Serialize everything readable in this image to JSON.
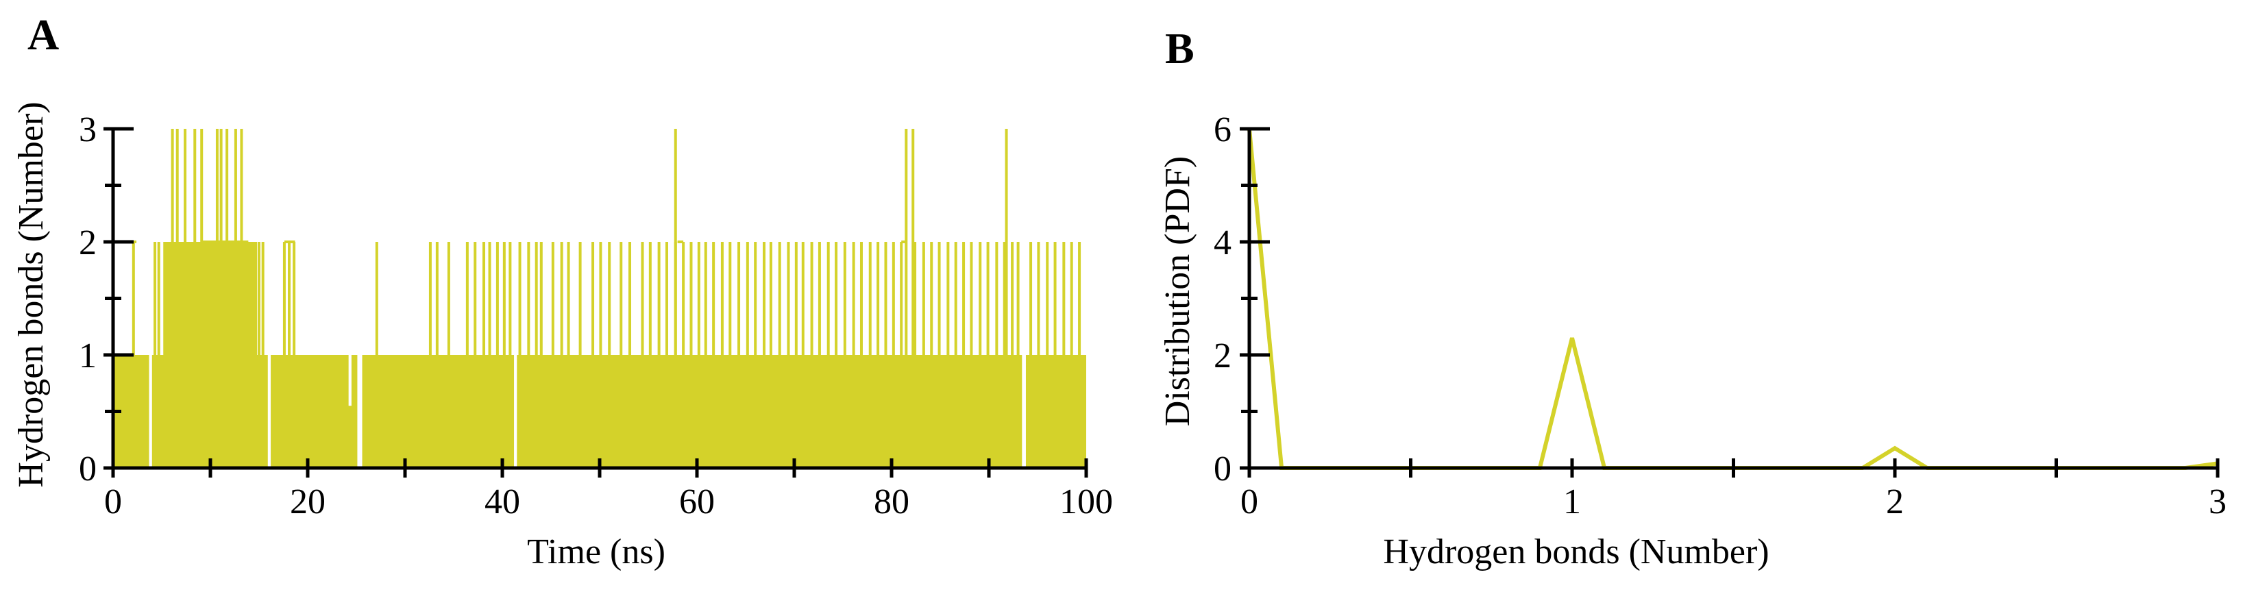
{
  "colors": {
    "series": "#d4d22a",
    "axis": "#000000",
    "background": "#ffffff"
  },
  "chart_data": [
    {
      "panel": "A",
      "type": "area",
      "title": "",
      "xlabel": "Time (ns)",
      "ylabel": "Hydrogen bonds (Number)",
      "xlim": [
        0,
        100
      ],
      "ylim": [
        0,
        3
      ],
      "xticks": [
        0,
        20,
        40,
        60,
        80,
        100
      ],
      "yticks": [
        0,
        1,
        2,
        3
      ],
      "series": [
        {
          "name": "Hydrogen bonds",
          "baseline": [
            [
              0,
              1
            ],
            [
              3.7,
              1
            ],
            [
              3.7,
              0
            ],
            [
              4.0,
              0
            ],
            [
              4.0,
              1
            ],
            [
              15.9,
              1
            ],
            [
              15.9,
              0
            ],
            [
              16.2,
              0
            ],
            [
              16.2,
              1
            ],
            [
              24.2,
              1
            ],
            [
              24.2,
              0.55
            ],
            [
              24.5,
              0.55
            ],
            [
              24.5,
              1
            ],
            [
              25.1,
              1
            ],
            [
              25.1,
              0
            ],
            [
              25.6,
              0
            ],
            [
              25.6,
              1
            ],
            [
              41.2,
              1
            ],
            [
              41.2,
              0
            ],
            [
              41.5,
              0
            ],
            [
              41.5,
              1
            ],
            [
              93.4,
              1
            ],
            [
              93.4,
              0
            ],
            [
              93.8,
              0
            ],
            [
              93.8,
              1
            ],
            [
              100,
              1
            ]
          ],
          "spikes_to_2": [
            2.1,
            4.3,
            4.7,
            5.3,
            6.1,
            6.6,
            7.0,
            7.4,
            7.9,
            8.3,
            8.6,
            9.2,
            9.8,
            10.4,
            10.9,
            11.5,
            12.0,
            12.6,
            13.2,
            13.8,
            14.4,
            15.0,
            15.4,
            17.6,
            18.1,
            18.6,
            27.1,
            32.6,
            33.3,
            34.5,
            36.4,
            37.2,
            38.1,
            38.7,
            39.5,
            40.2,
            40.8,
            41.8,
            42.7,
            43.5,
            44.0,
            45.2,
            46.1,
            46.8,
            48.0,
            49.3,
            50.1,
            51.0,
            52.2,
            53.1,
            54.4,
            55.2,
            56.1,
            56.9,
            57.8,
            58.6,
            59.4,
            60.2,
            60.9,
            61.7,
            62.6,
            63.4,
            64.3,
            65.2,
            66.0,
            66.9,
            67.6,
            68.5,
            69.4,
            70.2,
            70.9,
            71.8,
            72.6,
            73.5,
            74.3,
            75.2,
            76.1,
            76.9,
            77.8,
            78.6,
            79.4,
            80.2,
            81.0,
            82.4,
            83.3,
            84.1,
            84.9,
            85.8,
            86.6,
            87.4,
            88.2,
            89.1,
            89.9,
            90.8,
            91.6,
            92.4,
            93.0,
            94.3,
            95.1,
            96.0,
            96.8,
            97.7,
            98.5,
            99.3
          ],
          "spikes_to_3": [
            6.1,
            6.6,
            7.4,
            8.4,
            9.1,
            10.7,
            11.1,
            11.7,
            12.6,
            13.2,
            57.8,
            81.5,
            82.2,
            91.8
          ]
        }
      ]
    },
    {
      "panel": "B",
      "type": "line",
      "title": "",
      "xlabel": "Hydrogen bonds (Number)",
      "ylabel": "Distribution (PDF)",
      "xlim": [
        0,
        3
      ],
      "ylim": [
        0,
        6
      ],
      "xticks": [
        0,
        1,
        2,
        3
      ],
      "yticks": [
        0,
        2,
        4,
        6
      ],
      "series": [
        {
          "name": "PDF",
          "x": [
            0,
            0.1,
            0.9,
            1.0,
            1.1,
            1.9,
            2.0,
            2.1,
            2.9,
            3.0
          ],
          "y": [
            6.0,
            0,
            0,
            2.3,
            0,
            0,
            0.35,
            0,
            0,
            0.08
          ]
        }
      ]
    }
  ]
}
